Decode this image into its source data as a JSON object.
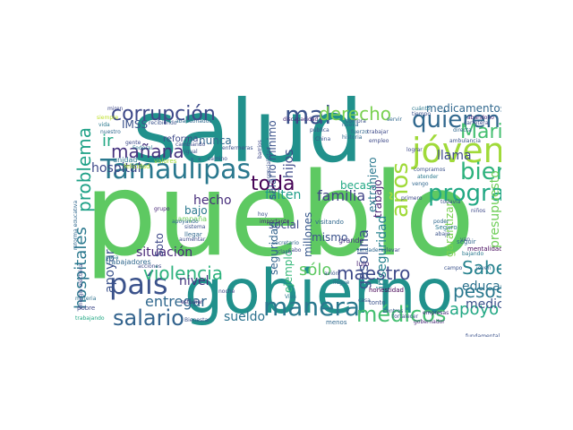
{
  "words": [
    {
      "text": "pueblo",
      "color": "#5ec962"
    },
    {
      "text": "salud",
      "color": "#21918c"
    },
    {
      "text": "gobierno",
      "color": "#21918c"
    },
    {
      "text": "Tamaulipas",
      "color": "#2a788e"
    },
    {
      "text": "jóvenes",
      "color": "#a0da39"
    },
    {
      "text": "mal",
      "color": "#3b528b"
    },
    {
      "text": "país",
      "color": "#3b528b"
    },
    {
      "text": "corrupción",
      "color": "#3e4989"
    },
    {
      "text": "quieren",
      "color": "#31688e"
    },
    {
      "text": "programa",
      "color": "#22a884"
    },
    {
      "text": "bien",
      "color": "#2db27d"
    },
    {
      "text": "derecho",
      "color": "#7ad151"
    },
    {
      "text": "Marina",
      "color": "#44bf70"
    },
    {
      "text": "años",
      "color": "#a0da39"
    },
    {
      "text": "manera",
      "color": "#2a788e"
    },
    {
      "text": "salario",
      "color": "#33638d"
    },
    {
      "text": "mañana",
      "color": "#46337e"
    },
    {
      "text": "toda",
      "color": "#440154"
    },
    {
      "text": "médicos",
      "color": "#44bf70"
    },
    {
      "text": "maestro",
      "color": "#3e4989"
    },
    {
      "text": "pesos",
      "color": "#2a788e"
    },
    {
      "text": "violencia",
      "color": "#2db27d"
    },
    {
      "text": "apoyo",
      "color": "#22a884"
    },
    {
      "text": "problema",
      "color": "#1fa187"
    },
    {
      "text": "hospitales",
      "color": "#2a788e"
    },
    {
      "text": "Saben",
      "color": "#26828e"
    },
    {
      "text": "sólo",
      "color": "#5ec962"
    },
    {
      "text": "gasolina",
      "color": "#3b528b"
    },
    {
      "text": "medicamentos",
      "color": "#31688e"
    },
    {
      "text": "educación",
      "color": "#2c728e"
    },
    {
      "text": "medicina",
      "color": "#3b528b"
    },
    {
      "text": "entregar",
      "color": "#31688e"
    },
    {
      "text": "hospital",
      "color": "#3e4989"
    },
    {
      "text": "ir",
      "color": "#22a884"
    },
    {
      "text": "apoyar",
      "color": "#3b528b"
    },
    {
      "text": "presupuesto",
      "color": "#6ece58"
    },
    {
      "text": "familia",
      "color": "#414487"
    },
    {
      "text": "inseguridad",
      "color": "#26828e"
    },
    {
      "text": "situación",
      "color": "#482878"
    },
    {
      "text": "hecho",
      "color": "#472d7b"
    },
    {
      "text": "sueldo",
      "color": "#2c728e"
    },
    {
      "text": "hijos",
      "color": "#3e4989"
    },
    {
      "text": "falten",
      "color": "#1f9e89"
    },
    {
      "text": "salario mínimo",
      "color": "#3b528b"
    },
    {
      "text": "millones",
      "color": "#38588c"
    },
    {
      "text": "nivel",
      "color": "#46327e"
    },
    {
      "text": "garantizar",
      "color": "#7ad151"
    },
    {
      "text": "llama",
      "color": "#3e4989"
    },
    {
      "text": "trabajo",
      "color": "#481f70"
    },
    {
      "text": "ejemplo",
      "color": "#35b779"
    },
    {
      "text": "extranjero",
      "color": "#2a788e"
    },
    {
      "text": "nunca",
      "color": "#31688e"
    },
    {
      "text": "IMSS",
      "color": "#3b528b"
    },
    {
      "text": "social",
      "color": "#3e4989"
    },
    {
      "text": "becas",
      "color": "#22a884"
    },
    {
      "text": "seguridad",
      "color": "#33638d"
    },
    {
      "text": "mismo",
      "color": "#3b528b"
    },
    {
      "text": "bajo",
      "color": "#2a788e"
    },
    {
      "text": "Soto",
      "color": "#3e4989"
    },
    {
      "text": "reforma",
      "color": "#3e4989"
    },
    {
      "text": "campaña",
      "color": "#6ece58"
    },
    {
      "text": "unidad",
      "color": "#2a788e"
    },
    {
      "text": "grande",
      "color": "#453781"
    },
    {
      "text": "visitando",
      "color": "#31688e"
    },
    {
      "text": "lujo",
      "color": "#482475"
    },
    {
      "text": "mentalidad",
      "color": "#46085c"
    },
    {
      "text": "seguir",
      "color": "#31688e"
    },
    {
      "text": "Seguro",
      "color": "#2a788e"
    },
    {
      "text": "trabajadores",
      "color": "#31688e"
    },
    {
      "text": "acciones",
      "color": "#3e4989"
    },
    {
      "text": "honestidad",
      "color": "#440154"
    },
    {
      "text": "tonto",
      "color": "#3b528b"
    },
    {
      "text": "centros",
      "color": "#38588c"
    },
    {
      "text": "fortalecer",
      "color": "#3b528b"
    },
    {
      "text": "gobernador",
      "color": "#482878"
    },
    {
      "text": "empresas",
      "color": "#472d7b"
    },
    {
      "text": "menos",
      "color": "#31688e"
    },
    {
      "text": "pasa",
      "color": "#2a788e"
    },
    {
      "text": "casa",
      "color": "#3b528b"
    },
    {
      "text": "estudiar",
      "color": "#46337e"
    },
    {
      "text": "pobre",
      "color": "#3e4989"
    },
    {
      "text": "materia",
      "color": "#2c728e"
    },
    {
      "text": "trabajando",
      "color": "#22a884"
    },
    {
      "text": "fundamental",
      "color": "#3b528b"
    },
    {
      "text": "noche",
      "color": "#3e4989"
    },
    {
      "text": "Bienestar",
      "color": "#3b528b"
    },
    {
      "text": "Viva",
      "color": "#2a788e"
    },
    {
      "text": "secretario",
      "color": "#31688e"
    },
    {
      "text": "hoy",
      "color": "#3b528b"
    },
    {
      "text": "importante",
      "color": "#482475"
    },
    {
      "text": "aumentar",
      "color": "#3e4989"
    },
    {
      "text": "llegar",
      "color": "#31688e"
    },
    {
      "text": "grupo",
      "color": "#482878"
    },
    {
      "text": "sistema",
      "color": "#3b528b"
    },
    {
      "text": "apoyando",
      "color": "#31688e"
    },
    {
      "text": "cambiando",
      "color": "#3e4989"
    },
    {
      "text": "camino",
      "color": "#3b528b"
    },
    {
      "text": "Federal",
      "color": "#2a788e"
    },
    {
      "text": "igual",
      "color": "#3b528b"
    },
    {
      "text": "gente",
      "color": "#3e4989"
    },
    {
      "text": "nuestro",
      "color": "#31688e"
    },
    {
      "text": "vida",
      "color": "#2a788e"
    },
    {
      "text": "siempre",
      "color": "#bddf26"
    },
    {
      "text": "miren",
      "color": "#3e4989"
    },
    {
      "text": "recibiendo",
      "color": "#3b528b"
    },
    {
      "text": "discapacidad",
      "color": "#482878"
    },
    {
      "text": "abandonados",
      "color": "#31688e"
    },
    {
      "text": "pública",
      "color": "#3b528b"
    },
    {
      "text": "historia",
      "color": "#31688e"
    },
    {
      "text": "empleo",
      "color": "#3e4989"
    },
    {
      "text": "compra",
      "color": "#3b528b"
    },
    {
      "text": "servir",
      "color": "#31688e"
    },
    {
      "text": "cuánto",
      "color": "#2a788e"
    },
    {
      "text": "tiempo",
      "color": "#3b528b"
    },
    {
      "text": "abandono",
      "color": "#482878"
    },
    {
      "text": "carretera",
      "color": "#3e4989"
    },
    {
      "text": "directa",
      "color": "#31688e"
    },
    {
      "text": "ambulancia",
      "color": "#3b528b"
    },
    {
      "text": "compramos",
      "color": "#3b528b"
    },
    {
      "text": "vengo",
      "color": "#31688e"
    },
    {
      "text": "lograr",
      "color": "#3e4989"
    },
    {
      "text": "atender",
      "color": "#2a788e"
    },
    {
      "text": "todavía",
      "color": "#3b528b"
    },
    {
      "text": "primero",
      "color": "#3e4989"
    },
    {
      "text": "poder",
      "color": "#31688e"
    },
    {
      "text": "abajo",
      "color": "#3b528b"
    },
    {
      "text": "bajando",
      "color": "#2a788e"
    },
    {
      "text": "niños",
      "color": "#3e4989"
    },
    {
      "text": "campo",
      "color": "#3b528b"
    },
    {
      "text": "joven",
      "color": "#31688e"
    },
    {
      "text": "llevar",
      "color": "#3e4989"
    },
    {
      "text": "avión",
      "color": "#3b528b"
    },
    {
      "text": "llegue",
      "color": "#31688e"
    },
    {
      "text": "cabo",
      "color": "#3e4989"
    },
    {
      "text": "clase",
      "color": "#3b528b"
    },
    {
      "text": "verdadera",
      "color": "#31688e"
    },
    {
      "text": "trabajar",
      "color": "#3e4989"
    },
    {
      "text": "China",
      "color": "#3b528b"
    },
    {
      "text": "nueva",
      "color": "#31688e"
    },
    {
      "text": "especialistas",
      "color": "#3b528b"
    },
    {
      "text": "barrios",
      "color": "#3e4989"
    },
    {
      "text": "fuerzo",
      "color": "#31688e"
    },
    {
      "text": "enfermeras",
      "color": "#3b528b"
    },
    {
      "text": "valores",
      "color": "#a0da39"
    },
    {
      "text": "felicidad",
      "color": "#b5de2b"
    },
    {
      "text": "energía eléctrica",
      "color": "#3e4989"
    },
    {
      "text": "reforma educativa",
      "color": "#31688e"
    },
    {
      "text": "van",
      "color": "#3b528b"
    }
  ]
}
